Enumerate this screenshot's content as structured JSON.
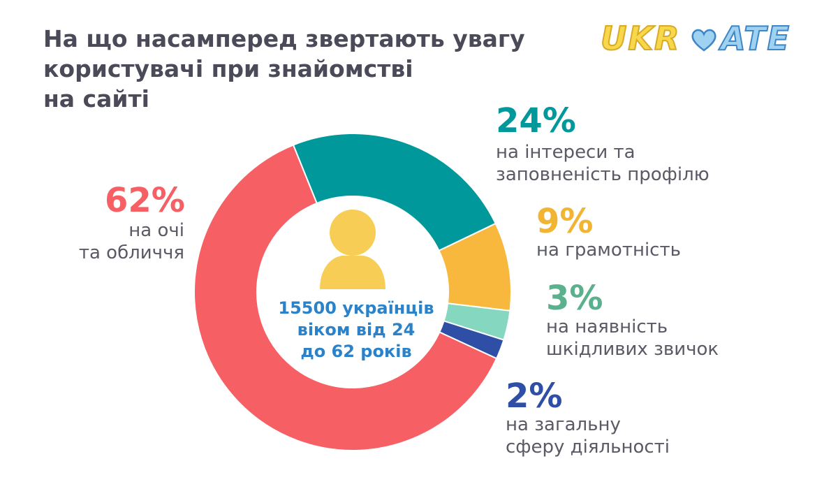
{
  "title": {
    "line1": "На що насамперед звертають увагу",
    "line2": "користувачі при знайомстві",
    "line3": "на сайті"
  },
  "logo": {
    "part1": "UKR",
    "part2": "ATE",
    "icon": "heart-icon"
  },
  "center": {
    "icon": "person-icon",
    "line1": "15500 українців",
    "line2": "віком від 24",
    "line3": "до 62 років"
  },
  "colors": {
    "title": "#4a4a58",
    "label": "#5a5a66",
    "center_text": "#2b82c9",
    "person": "#f8cd56"
  },
  "chart_data": {
    "type": "pie",
    "donut": true,
    "start_angle_deg": -22,
    "slices": [
      {
        "value": 24,
        "percent_label": "24%",
        "label_lines": [
          "на інтереси та",
          "заповненість профілю"
        ],
        "color": "#00989a"
      },
      {
        "value": 9,
        "percent_label": "9%",
        "label_lines": [
          "на грамотність"
        ],
        "color": "#f8b83e"
      },
      {
        "value": 3,
        "percent_label": "3%",
        "label_lines": [
          "на наявність",
          "шкідливих звичок"
        ],
        "color": "#85d8bf"
      },
      {
        "value": 2,
        "percent_label": "2%",
        "label_lines": [
          "на загальну",
          "сферу діяльності"
        ],
        "color": "#2f4fa6"
      },
      {
        "value": 62,
        "percent_label": "62%",
        "label_lines": [
          "на очі",
          "та обличчя"
        ],
        "color": "#f65f63"
      }
    ]
  }
}
